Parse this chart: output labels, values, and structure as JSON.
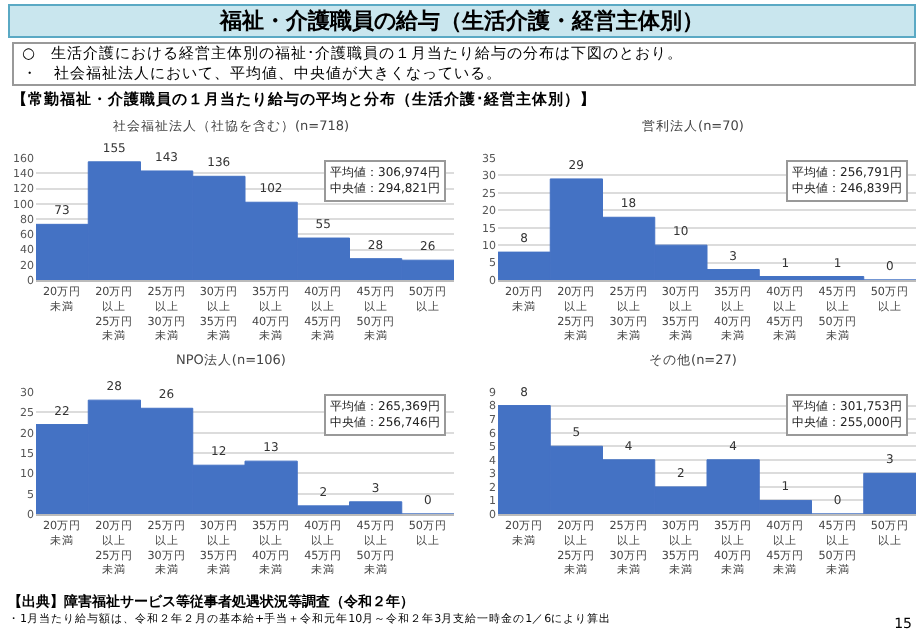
{
  "chart_data": [
    {
      "type": "other",
      "title": "福祉・介護職員の給与（生活介護・経営主体別）",
      "annotations": [
        "○　生活介護における経営主体別の福祉･介護職員の１月当たり給与の分布は下図のとおり。",
        "・　社会福祉法人において、平均値、中央値が大きくなっている。",
        "【常勤福祉・介護職員の１月当たり給与の平均と分布（生活介護･経営主体別）】"
      ]
    },
    {
      "type": "bar",
      "title": "社会福祉法人（社協を含む）(n=718)",
      "categories": [
        "20万円未満",
        "20万円以上\n25万円未満",
        "25万円以上\n30万円未満",
        "30万円以上\n35万円未満",
        "35万円以上\n40万円未満",
        "40万円以上\n45万円未満",
        "45万円以上\n50万円未満",
        "50万円以上"
      ],
      "values": [
        73,
        155,
        143,
        136,
        102,
        55,
        28,
        26
      ],
      "color": "#4472c4",
      "ylim": [
        0,
        160
      ],
      "yticks": [
        0,
        20,
        40,
        60,
        80,
        100,
        120,
        140,
        160
      ],
      "grid": "y",
      "data_labels": true,
      "legend": false,
      "annotations": [
        "平均値：306,974円",
        "中央値：294,821円"
      ]
    },
    {
      "type": "bar",
      "title": "営利法人(n=70)",
      "categories": [
        "20万円未満",
        "20万円以上\n25万円未満",
        "25万円以上\n30万円未満",
        "30万円以上\n35万円未満",
        "35万円以上\n40万円未満",
        "40万円以上\n45万円未満",
        "45万円以上\n50万円未満",
        "50万円以上"
      ],
      "values": [
        8,
        29,
        18,
        10,
        3,
        1,
        1,
        0
      ],
      "color": "#4472c4",
      "ylim": [
        0,
        35
      ],
      "yticks": [
        0,
        5,
        10,
        15,
        20,
        25,
        30,
        35
      ],
      "grid": "y",
      "data_labels": true,
      "legend": false,
      "annotations": [
        "平均値：256,791円",
        "中央値：246,839円"
      ]
    },
    {
      "type": "bar",
      "title": "NPO法人(n=106)",
      "categories": [
        "20万円未満",
        "20万円以上\n25万円未満",
        "25万円以上\n30万円未満",
        "30万円以上\n35万円未満",
        "35万円以上\n40万円未満",
        "40万円以上\n45万円未満",
        "45万円以上\n50万円未満",
        "50万円以上"
      ],
      "values": [
        22,
        28,
        26,
        12,
        13,
        2,
        3,
        0
      ],
      "color": "#4472c4",
      "ylim": [
        0,
        30
      ],
      "yticks": [
        0,
        5,
        10,
        15,
        20,
        25,
        30
      ],
      "grid": "y",
      "data_labels": true,
      "legend": false,
      "annotations": [
        "平均値：265,369円",
        "中央値：256,746円"
      ]
    },
    {
      "type": "bar",
      "title": "その他(n=27)",
      "categories": [
        "20万円未満",
        "20万円以上\n25万円未満",
        "25万円以上\n30万円未満",
        "30万円以上\n35万円未満",
        "35万円以上\n40万円未満",
        "40万円以上\n45万円未満",
        "45万円以上\n50万円未満",
        "50万円以上"
      ],
      "values": [
        8,
        5,
        4,
        2,
        4,
        1,
        0,
        3
      ],
      "color": "#4472c4",
      "ylim": [
        0,
        9
      ],
      "yticks": [
        0,
        1,
        2,
        3,
        4,
        5,
        6,
        7,
        8,
        9
      ],
      "grid": "y",
      "data_labels": true,
      "legend": false,
      "annotations": [
        "平均値：301,753円",
        "中央値：255,000円"
      ]
    },
    {
      "type": "other",
      "annotations": [
        "【出典】障害福祉サービス等従事者処遇状況等調査（令和２年）",
        "・1月当たり給与額は、令和２年２月の基本給+手当＋令和元年10月～令和２年3月支給一時金の1／6により算出",
        "15"
      ]
    }
  ]
}
